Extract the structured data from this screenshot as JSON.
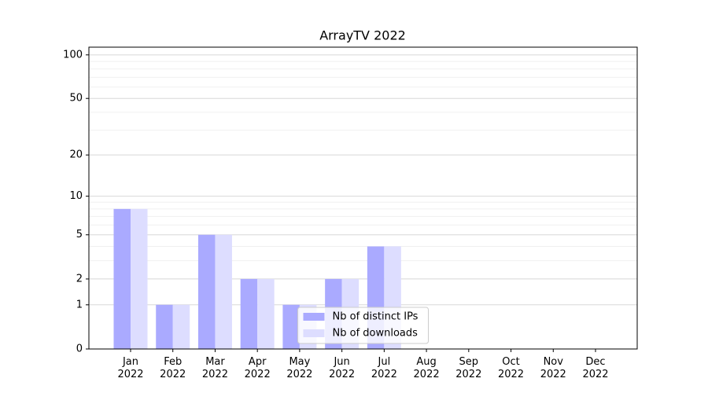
{
  "chart_data": {
    "type": "bar",
    "title": "ArrayTV 2022",
    "categories": [
      "Jan 2022",
      "Feb 2022",
      "Mar 2022",
      "Apr 2022",
      "May 2022",
      "Jun 2022",
      "Jul 2022",
      "Aug 2022",
      "Sep 2022",
      "Oct 2022",
      "Nov 2022",
      "Dec 2022"
    ],
    "series": [
      {
        "name": "Nb of distinct IPs",
        "color": "#aaaaff",
        "values": [
          8,
          1,
          5,
          2,
          1,
          2,
          4,
          0,
          0,
          0,
          0,
          0
        ]
      },
      {
        "name": "Nb of downloads",
        "color": "#ddddff",
        "values": [
          8,
          1,
          5,
          2,
          1,
          2,
          4,
          0,
          0,
          0,
          0,
          0
        ]
      }
    ],
    "yscale": "log1p",
    "ylim": [
      0,
      113
    ],
    "yticks": [
      0,
      1,
      2,
      5,
      10,
      20,
      50,
      100
    ],
    "minor_yticks": [
      3,
      4,
      6,
      7,
      8,
      9,
      30,
      40,
      60,
      70,
      80,
      90
    ],
    "grid": true,
    "legend": "lower center"
  }
}
